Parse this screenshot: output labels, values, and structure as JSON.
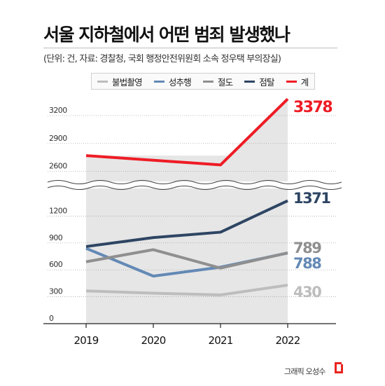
{
  "header": {
    "title": "서울 지하철에서 어떤 범죄 발생했나",
    "subtitle": "(단위: 건, 자료: 경찰청, 국회 행정안전위원회 소속 정우택 부의장실)"
  },
  "credit": {
    "text": "그래픽 오성수",
    "icon": "asia-economy-logo-icon",
    "icon_color": "#e8251f"
  },
  "chart_data": {
    "type": "line",
    "categories": [
      "2019",
      "2020",
      "2021",
      "2022"
    ],
    "series": [
      {
        "name": "불법촬영",
        "color": "#bdbdbd",
        "values": [
          365,
          340,
          320,
          430
        ],
        "end_label": "430"
      },
      {
        "name": "성추행",
        "color": "#6389b5",
        "values": [
          840,
          530,
          630,
          788
        ],
        "end_label": "788"
      },
      {
        "name": "절도",
        "color": "#8f8f8f",
        "values": [
          690,
          825,
          620,
          789
        ],
        "end_label": "789"
      },
      {
        "name": "점탈",
        "color": "#2e4563",
        "values": [
          860,
          960,
          1020,
          1371
        ],
        "end_label": "1371"
      },
      {
        "name": "계",
        "color": "#ee1c25",
        "values": [
          2770,
          2720,
          2670,
          3378
        ],
        "end_label": "3378"
      }
    ],
    "y_ticks_lower": [
      0,
      300,
      600,
      900,
      1200
    ],
    "y_ticks_upper": [
      2600,
      2900,
      3200
    ],
    "ylim_lower": [
      0,
      1500
    ],
    "ylim_upper": [
      2500,
      3380
    ],
    "axis_break": true,
    "grid": false,
    "shaded_region": [
      "2019",
      "2022"
    ],
    "legend_position": "top"
  }
}
